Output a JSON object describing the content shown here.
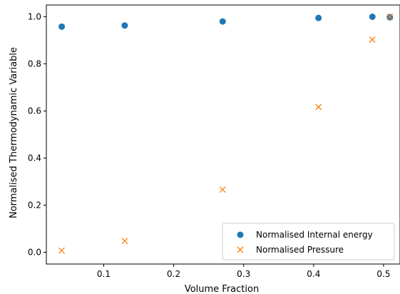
{
  "colors": {
    "internal": "#1f77b4",
    "pressure": "#ff7f0e",
    "axis": "#000000",
    "legend_border": "#cccccc"
  },
  "chart_data": {
    "type": "scatter",
    "xlabel": "Volume Fraction",
    "ylabel": "Normalised Thermodynamic Variable",
    "xlim": [
      0.018,
      0.5235
    ],
    "ylim": [
      -0.05,
      1.05
    ],
    "grid": false,
    "legend_position": "bottom-right",
    "xticks": [
      0.1,
      0.2,
      0.3,
      0.4,
      0.5
    ],
    "xtick_labels": [
      "0.1",
      "0.2",
      "0.3",
      "0.4",
      "0.5"
    ],
    "yticks": [
      0.0,
      0.2,
      0.4,
      0.6,
      0.8,
      1.0
    ],
    "ytick_labels": [
      "0.0",
      "0.2",
      "0.4",
      "0.6",
      "0.8",
      "1.0"
    ],
    "series": [
      {
        "name": "Normalised Internal energy",
        "marker": "circle",
        "color": "#1f77b4",
        "x": [
          0.04,
          0.13,
          0.27,
          0.407,
          0.484,
          0.509
        ],
        "y": [
          0.958,
          0.963,
          0.98,
          0.995,
          1.0,
          0.998
        ]
      },
      {
        "name": "Normalised Pressure",
        "marker": "x",
        "color": "#ff7f0e",
        "x": [
          0.04,
          0.13,
          0.27,
          0.407,
          0.484,
          0.509
        ],
        "y": [
          0.007,
          0.048,
          0.266,
          0.617,
          0.903,
          1.0
        ]
      }
    ]
  }
}
